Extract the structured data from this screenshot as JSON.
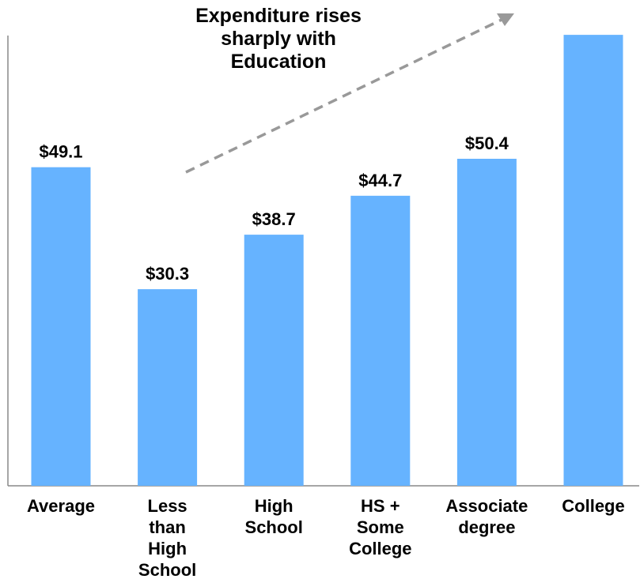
{
  "chart_data": {
    "type": "bar",
    "annotation": "Expenditure rises\nsharply with\nEducation",
    "categories": [
      "Average",
      "Less\nthan\nHigh\nSchool",
      "High\nSchool",
      "HS +\nSome\nCollege",
      "Associate\ndegree",
      "College"
    ],
    "values": [
      49.1,
      30.3,
      38.7,
      44.7,
      50.4,
      69.5
    ],
    "value_labels": [
      "$49.1",
      "$30.3",
      "$38.7",
      "$44.7",
      "$50.4",
      null
    ],
    "color": "#66b3ff",
    "ylim": [
      0,
      70
    ]
  }
}
